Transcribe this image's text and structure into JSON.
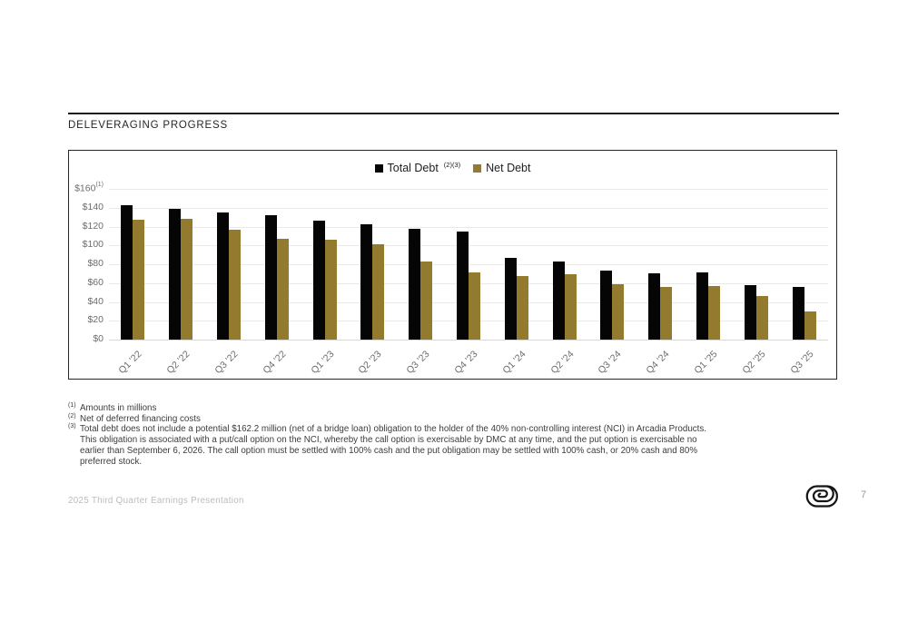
{
  "slide": {
    "title": "DELEVERAGING PROGRESS",
    "footer_left": "2025 Third Quarter Earnings Presentation",
    "page_number": "7",
    "logo": "dmc-spiral-logo"
  },
  "footnotes": [
    {
      "marker": "(1)",
      "lines": [
        "Amounts in millions"
      ]
    },
    {
      "marker": "(2)",
      "lines": [
        "Net of deferred financing costs"
      ]
    },
    {
      "marker": "(3)",
      "lines": [
        "Total debt does not include a potential $162.2 million (net of a bridge loan) obligation to the holder of the 40% non-controlling interest (NCI) in Arcadia Products.",
        "This obligation is associated with a put/call option on the NCI, whereby the call option is exercisable by DMC at any time, and the put option is exercisable no",
        "earlier than September 6, 2026. The call option must be settled with 100% cash and the put obligation may be settled with 100% cash, or 20% cash and 80%",
        "preferred stock."
      ]
    }
  ],
  "chart_data": {
    "type": "bar",
    "title": "",
    "categories": [
      "Q1 '22",
      "Q2 '22",
      "Q3 '22",
      "Q4 '22",
      "Q1 '23",
      "Q2 '23",
      "Q3 '23",
      "Q4 '23",
      "Q1 '24",
      "Q2 '24",
      "Q3 '24",
      "Q4 '24",
      "Q1 '25",
      "Q2 '25",
      "Q3 '25"
    ],
    "series": [
      {
        "name": "Total Debt",
        "superscript": "(2)(3)",
        "color": "#050505",
        "values": [
          143,
          139,
          135,
          132,
          126,
          122,
          118,
          115,
          87,
          83,
          73,
          70,
          71,
          58,
          56
        ]
      },
      {
        "name": "Net Debt",
        "superscript": "",
        "color": "#927A2E",
        "values": [
          127,
          128,
          117,
          107,
          106,
          101,
          83,
          71,
          67,
          69,
          59,
          56,
          57,
          46,
          30
        ]
      }
    ],
    "ylabel_prefix": "$",
    "ylim": [
      0,
      160
    ],
    "ytick_step": 20,
    "ytick_superscript_top": "(1)",
    "grid": true,
    "legend_position": "top-center"
  }
}
